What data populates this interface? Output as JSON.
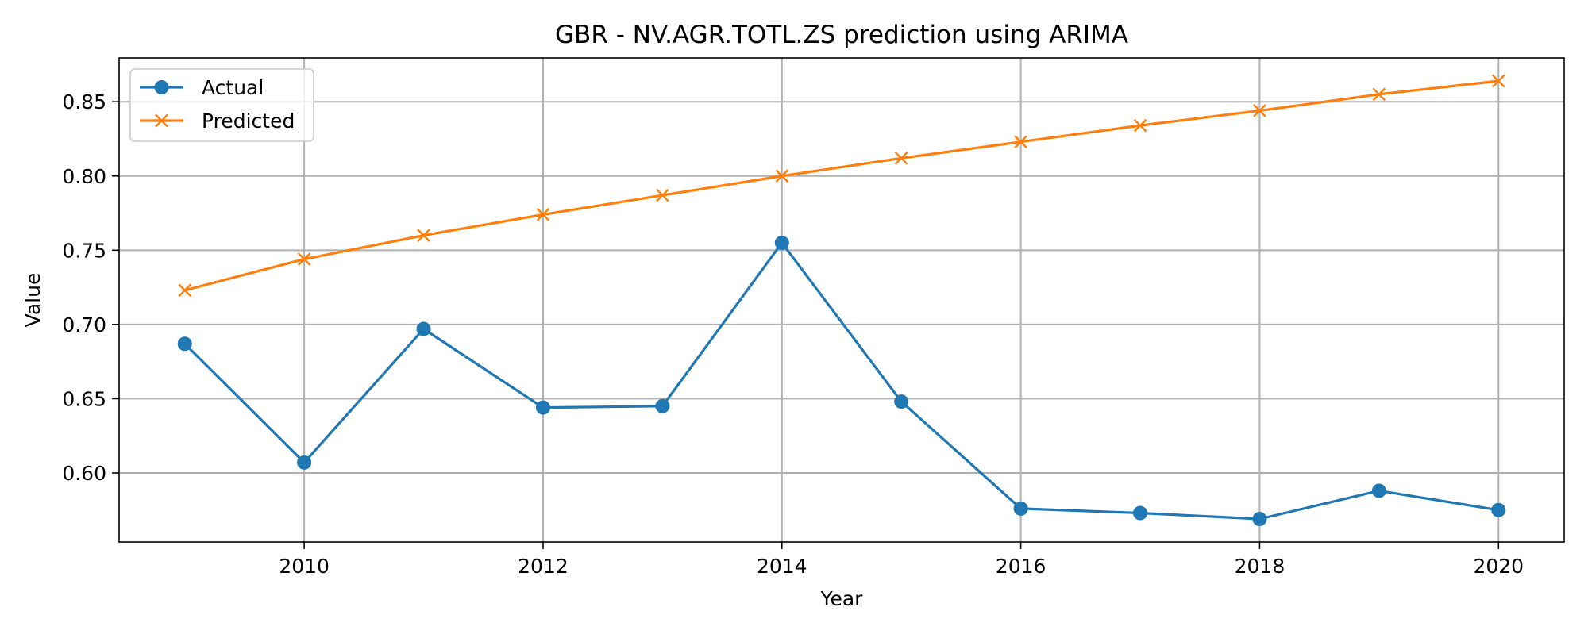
{
  "chart_data": {
    "type": "line",
    "title": "GBR - NV.AGR.TOTL.ZS prediction using ARIMA",
    "xlabel": "Year",
    "ylabel": "Value",
    "x": [
      2009,
      2010,
      2011,
      2012,
      2013,
      2014,
      2015,
      2016,
      2017,
      2018,
      2019,
      2020
    ],
    "xlim": [
      2008.45,
      2020.55
    ],
    "ylim": [
      0.5535,
      0.8795
    ],
    "xticks": [
      2010,
      2012,
      2014,
      2016,
      2018,
      2020
    ],
    "yticks": [
      0.6,
      0.65,
      0.7,
      0.75,
      0.8,
      0.85
    ],
    "grid": true,
    "legend_position": "top-left",
    "series": [
      {
        "name": "Actual",
        "marker": "circle",
        "color": "#1f77b4",
        "values": [
          0.687,
          0.607,
          0.697,
          0.644,
          0.645,
          0.755,
          0.648,
          0.576,
          0.573,
          0.569,
          0.588,
          0.575
        ]
      },
      {
        "name": "Predicted",
        "marker": "x",
        "color": "#ff7f0e",
        "values": [
          0.723,
          0.744,
          0.76,
          0.774,
          0.787,
          0.8,
          0.812,
          0.823,
          0.834,
          0.844,
          0.855,
          0.864
        ]
      }
    ]
  }
}
